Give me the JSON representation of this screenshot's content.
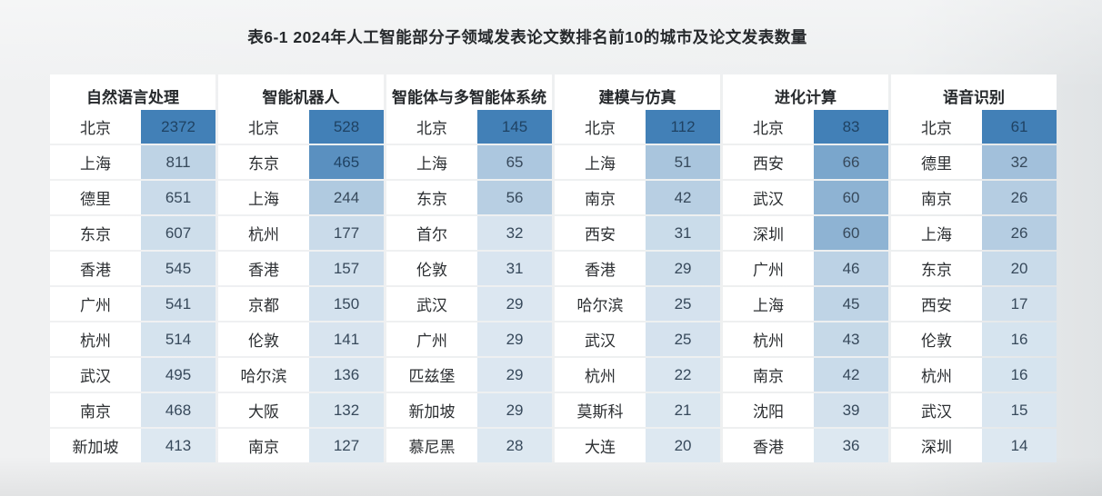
{
  "title": "表6-1 2024年人工智能部分子领域发表论文数排名前10的城市及论文发表数量",
  "chart_data": {
    "type": "table",
    "title": "表6-1 2024年人工智能部分子领域发表论文数排名前10的城市及论文发表数量",
    "heat_scale": {
      "low_color": "#dde8f1",
      "high_color": "#4280b7",
      "normalization": "min-max per column"
    },
    "dark_cell_text_color": "#1f4263",
    "columns": [
      {
        "header": "自然语言处理",
        "rows": [
          {
            "city": "北京",
            "value": 2372
          },
          {
            "city": "上海",
            "value": 811
          },
          {
            "city": "德里",
            "value": 651
          },
          {
            "city": "东京",
            "value": 607
          },
          {
            "city": "香港",
            "value": 545
          },
          {
            "city": "广州",
            "value": 541
          },
          {
            "city": "杭州",
            "value": 514
          },
          {
            "city": "武汉",
            "value": 495
          },
          {
            "city": "南京",
            "value": 468
          },
          {
            "city": "新加坡",
            "value": 413
          }
        ]
      },
      {
        "header": "智能机器人",
        "rows": [
          {
            "city": "北京",
            "value": 528
          },
          {
            "city": "东京",
            "value": 465
          },
          {
            "city": "上海",
            "value": 244
          },
          {
            "city": "杭州",
            "value": 177
          },
          {
            "city": "香港",
            "value": 157
          },
          {
            "city": "京都",
            "value": 150
          },
          {
            "city": "伦敦",
            "value": 141
          },
          {
            "city": "哈尔滨",
            "value": 136
          },
          {
            "city": "大阪",
            "value": 132
          },
          {
            "city": "南京",
            "value": 127
          }
        ]
      },
      {
        "header": "智能体与多智能体系统",
        "rows": [
          {
            "city": "北京",
            "value": 145
          },
          {
            "city": "上海",
            "value": 65
          },
          {
            "city": "东京",
            "value": 56
          },
          {
            "city": "首尔",
            "value": 32
          },
          {
            "city": "伦敦",
            "value": 31
          },
          {
            "city": "武汉",
            "value": 29
          },
          {
            "city": "广州",
            "value": 29
          },
          {
            "city": "匹兹堡",
            "value": 29
          },
          {
            "city": "新加坡",
            "value": 29
          },
          {
            "city": "慕尼黑",
            "value": 28
          }
        ]
      },
      {
        "header": "建模与仿真",
        "rows": [
          {
            "city": "北京",
            "value": 112
          },
          {
            "city": "上海",
            "value": 51
          },
          {
            "city": "南京",
            "value": 42
          },
          {
            "city": "西安",
            "value": 31
          },
          {
            "city": "香港",
            "value": 29
          },
          {
            "city": "哈尔滨",
            "value": 25
          },
          {
            "city": "武汉",
            "value": 25
          },
          {
            "city": "杭州",
            "value": 22
          },
          {
            "city": "莫斯科",
            "value": 21
          },
          {
            "city": "大连",
            "value": 20
          }
        ]
      },
      {
        "header": "进化计算",
        "rows": [
          {
            "city": "北京",
            "value": 83
          },
          {
            "city": "西安",
            "value": 66
          },
          {
            "city": "武汉",
            "value": 60
          },
          {
            "city": "深圳",
            "value": 60
          },
          {
            "city": "广州",
            "value": 46
          },
          {
            "city": "上海",
            "value": 45
          },
          {
            "city": "杭州",
            "value": 43
          },
          {
            "city": "南京",
            "value": 42
          },
          {
            "city": "沈阳",
            "value": 39
          },
          {
            "city": "香港",
            "value": 36
          }
        ]
      },
      {
        "header": "语音识别",
        "rows": [
          {
            "city": "北京",
            "value": 61
          },
          {
            "city": "德里",
            "value": 32
          },
          {
            "city": "南京",
            "value": 26
          },
          {
            "city": "上海",
            "value": 26
          },
          {
            "city": "东京",
            "value": 20
          },
          {
            "city": "西安",
            "value": 17
          },
          {
            "city": "伦敦",
            "value": 16
          },
          {
            "city": "杭州",
            "value": 16
          },
          {
            "city": "武汉",
            "value": 15
          },
          {
            "city": "深圳",
            "value": 14
          }
        ]
      }
    ]
  }
}
